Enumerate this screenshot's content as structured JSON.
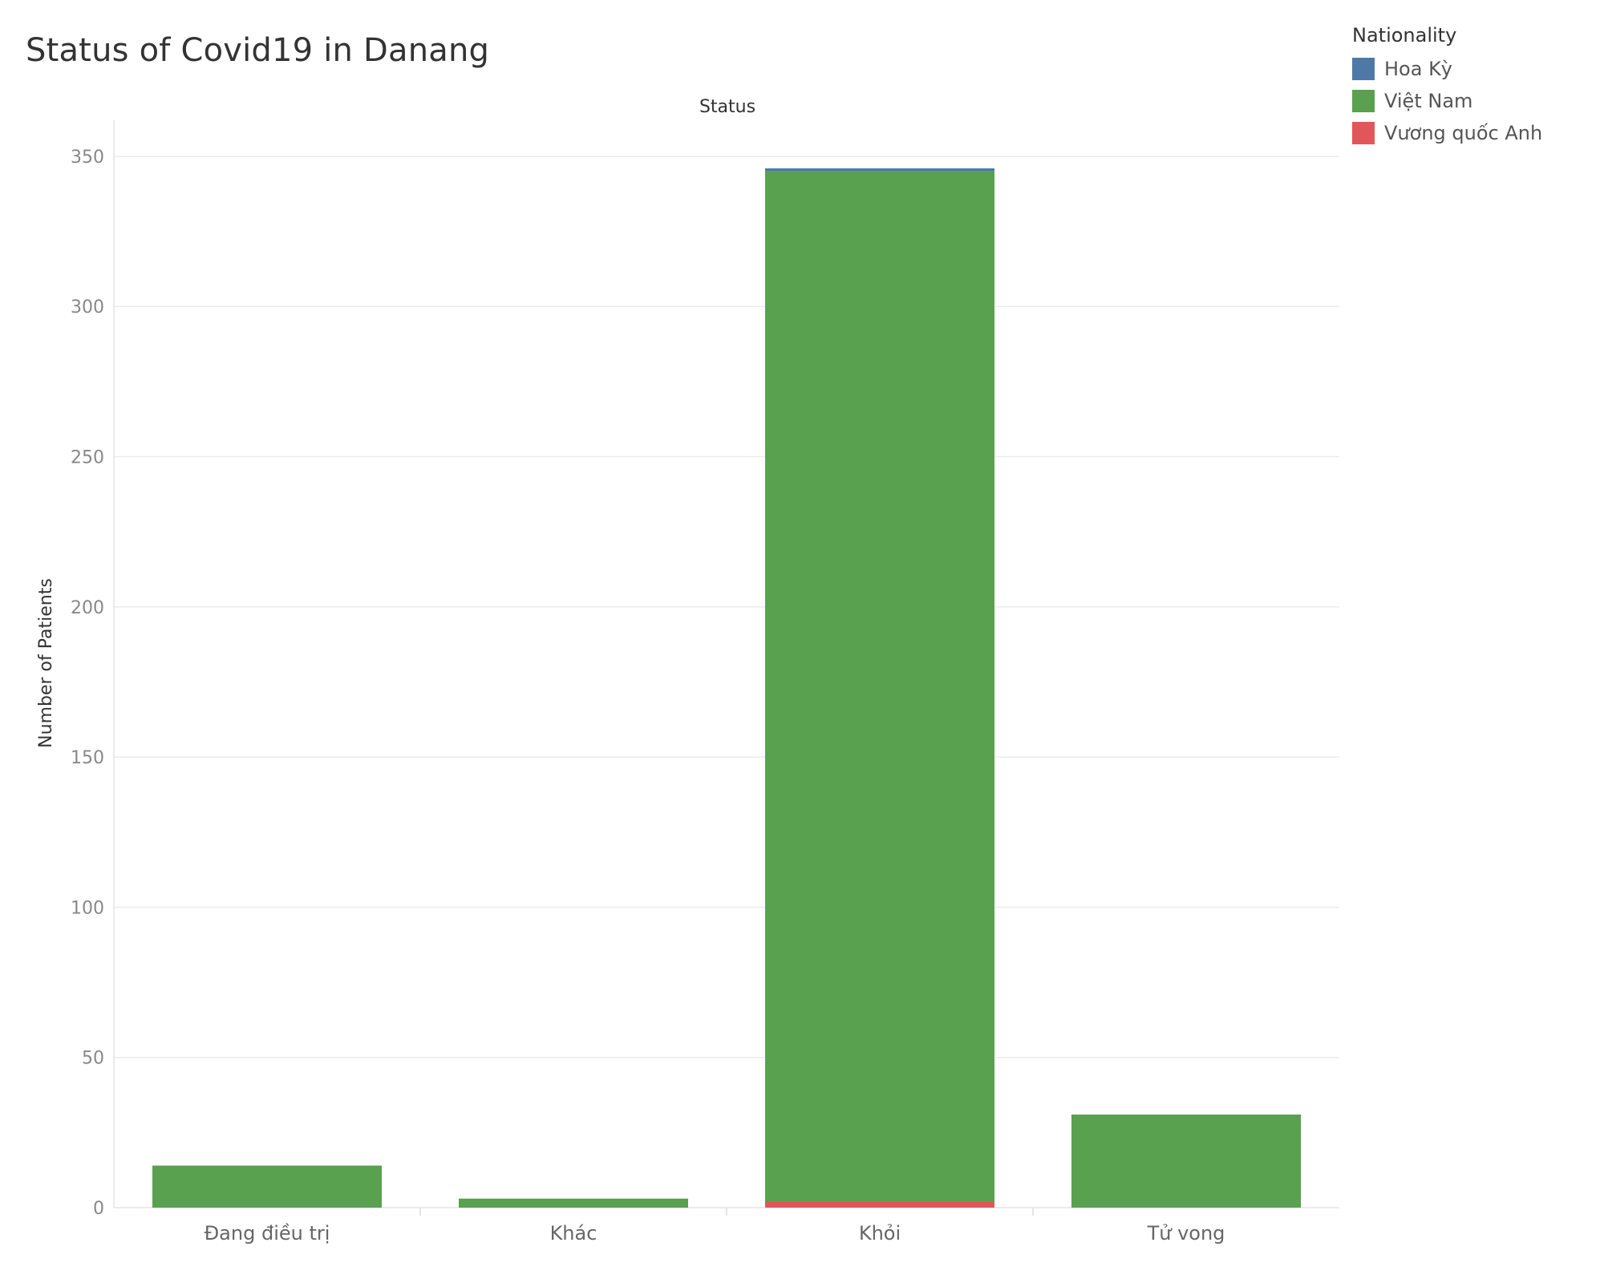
{
  "chart_data": {
    "type": "bar",
    "stacked": true,
    "title": "Status of Covid19 in Danang",
    "column_header": "Status",
    "ylabel": "Number of Patients",
    "ylim": [
      0,
      362
    ],
    "yticks": [
      0,
      50,
      100,
      150,
      200,
      250,
      300,
      350
    ],
    "grid": true,
    "legend_position": "top-right",
    "legend_title": "Nationality",
    "categories": [
      "Đang điều trị",
      "Khác",
      "Khỏi",
      "Tử vong"
    ],
    "series": [
      {
        "name": "Vương quốc Anh",
        "color": "#e15759",
        "values": [
          0,
          0,
          2,
          0
        ]
      },
      {
        "name": "Việt Nam",
        "color": "#59a14f",
        "values": [
          14,
          3,
          343,
          31
        ]
      },
      {
        "name": "Hoa Kỳ",
        "color": "#4e79a7",
        "values": [
          0,
          0,
          1,
          0
        ]
      }
    ],
    "legend_order": [
      "Hoa Kỳ",
      "Việt Nam",
      "Vương quốc Anh"
    ]
  }
}
